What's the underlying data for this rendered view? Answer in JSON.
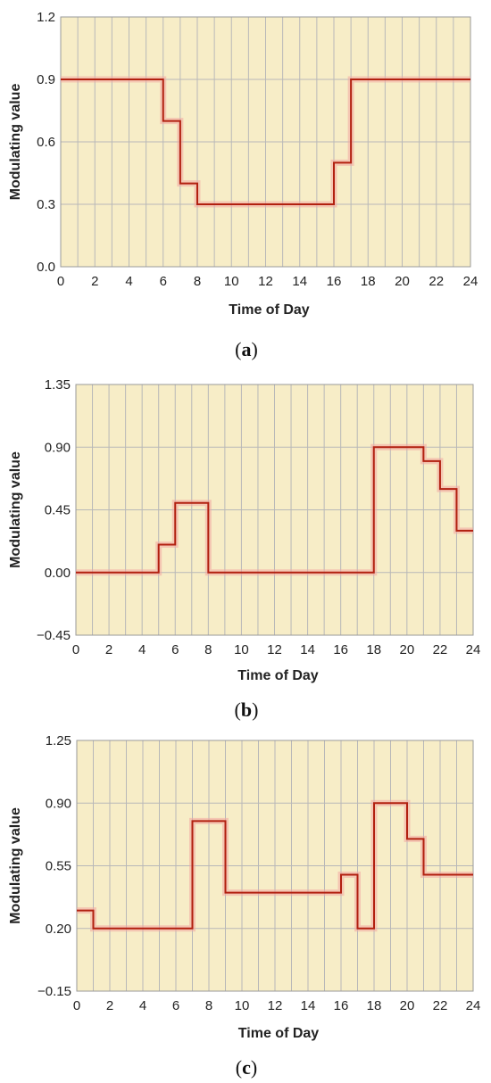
{
  "chart_data": [
    {
      "type": "line",
      "step": true,
      "panel_caption": "a",
      "xlabel": "Time of Day",
      "ylabel": "Modulating value",
      "xlim": [
        0,
        24
      ],
      "ylim": [
        0.0,
        1.2
      ],
      "xticks": [
        "0",
        "2",
        "4",
        "6",
        "8",
        "10",
        "12",
        "14",
        "16",
        "18",
        "20",
        "22",
        "24"
      ],
      "yticks": [
        "0.0",
        "0.3",
        "0.6",
        "0.9",
        "1.2"
      ],
      "ytick_values": [
        0.0,
        0.3,
        0.6,
        0.9,
        1.2
      ],
      "grid": true,
      "series": [
        {
          "values": [
            {
              "x": 0,
              "y": 0.9
            },
            {
              "x": 6,
              "y": 0.7
            },
            {
              "x": 7,
              "y": 0.4
            },
            {
              "x": 8,
              "y": 0.3
            },
            {
              "x": 16,
              "y": 0.5
            },
            {
              "x": 17,
              "y": 0.9
            },
            {
              "x": 24,
              "y": 0.9
            }
          ]
        }
      ]
    },
    {
      "type": "line",
      "step": true,
      "panel_caption": "b",
      "xlabel": "Time of Day",
      "ylabel": "Modulating value",
      "xlim": [
        0,
        24
      ],
      "ylim": [
        -0.45,
        1.35
      ],
      "xticks": [
        "0",
        "2",
        "4",
        "6",
        "8",
        "10",
        "12",
        "14",
        "16",
        "18",
        "20",
        "22",
        "24"
      ],
      "yticks": [
        "−0.45",
        "0.00",
        "0.45",
        "0.90",
        "1.35"
      ],
      "ytick_values": [
        -0.45,
        0.0,
        0.45,
        0.9,
        1.35
      ],
      "grid": true,
      "series": [
        {
          "values": [
            {
              "x": 0,
              "y": 0.0
            },
            {
              "x": 5,
              "y": 0.2
            },
            {
              "x": 6,
              "y": 0.5
            },
            {
              "x": 8,
              "y": 0.0
            },
            {
              "x": 18,
              "y": 0.9
            },
            {
              "x": 21,
              "y": 0.8
            },
            {
              "x": 22,
              "y": 0.6
            },
            {
              "x": 23,
              "y": 0.3
            },
            {
              "x": 24,
              "y": 0.3
            }
          ]
        }
      ]
    },
    {
      "type": "line",
      "step": true,
      "panel_caption": "c",
      "xlabel": "Time of Day",
      "ylabel": "Modulating value",
      "xlim": [
        0,
        24
      ],
      "ylim": [
        -0.15,
        1.25
      ],
      "xticks": [
        "0",
        "2",
        "4",
        "6",
        "8",
        "10",
        "12",
        "14",
        "16",
        "18",
        "20",
        "22",
        "24"
      ],
      "yticks": [
        "−0.15",
        "0.20",
        "0.55",
        "0.90",
        "1.25"
      ],
      "ytick_values": [
        -0.15,
        0.2,
        0.55,
        0.9,
        1.25
      ],
      "grid": true,
      "series": [
        {
          "values": [
            {
              "x": 0,
              "y": 0.3
            },
            {
              "x": 1,
              "y": 0.2
            },
            {
              "x": 7,
              "y": 0.8
            },
            {
              "x": 9,
              "y": 0.4
            },
            {
              "x": 16,
              "y": 0.5
            },
            {
              "x": 17,
              "y": 0.2
            },
            {
              "x": 18,
              "y": 0.9
            },
            {
              "x": 20,
              "y": 0.7
            },
            {
              "x": 21,
              "y": 0.5
            },
            {
              "x": 24,
              "y": 0.5
            }
          ]
        }
      ]
    }
  ],
  "colors": {
    "plot_background": "#f7edc7",
    "grid": "#b8b8b8",
    "line": "#b22010",
    "line_glow": "#f2a6a0"
  }
}
